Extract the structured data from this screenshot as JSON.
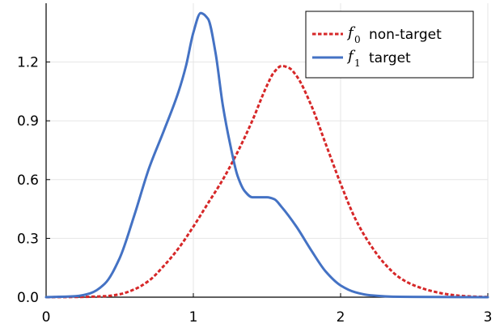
{
  "chart_data": {
    "type": "line",
    "title": "",
    "xlabel": "",
    "ylabel": "",
    "xlim": [
      0,
      3
    ],
    "ylim": [
      0,
      1.5
    ],
    "xticks": [
      0,
      1,
      2,
      3
    ],
    "xtick_labels": [
      "0",
      "1",
      "2",
      "3"
    ],
    "yticks": [
      0.0,
      0.3,
      0.6,
      0.9,
      1.2
    ],
    "ytick_labels": [
      "0.0",
      "0.3",
      "0.6",
      "0.9",
      "1.2"
    ],
    "grid": true,
    "legend_position": "top-right",
    "series": [
      {
        "name": "non-target",
        "symbol": "f",
        "subscript": "0",
        "color": "#d62728",
        "style": "dashed",
        "x": [
          0,
          0.2,
          0.4,
          0.5,
          0.6,
          0.7,
          0.8,
          0.9,
          1.0,
          1.1,
          1.2,
          1.3,
          1.4,
          1.5,
          1.55,
          1.6,
          1.65,
          1.7,
          1.8,
          1.9,
          2.0,
          2.1,
          2.2,
          2.3,
          2.4,
          2.5,
          2.6,
          2.7,
          2.8,
          2.9,
          3.0
        ],
        "y": [
          0,
          0.001,
          0.005,
          0.015,
          0.04,
          0.085,
          0.16,
          0.25,
          0.36,
          0.48,
          0.6,
          0.74,
          0.9,
          1.08,
          1.15,
          1.18,
          1.17,
          1.13,
          0.98,
          0.78,
          0.58,
          0.4,
          0.27,
          0.17,
          0.1,
          0.06,
          0.035,
          0.018,
          0.008,
          0.003,
          0.001
        ]
      },
      {
        "name": "target",
        "symbol": "f",
        "subscript": "1",
        "color": "#4472c4",
        "style": "solid",
        "x": [
          0,
          0.2,
          0.3,
          0.4,
          0.5,
          0.6,
          0.7,
          0.8,
          0.9,
          0.95,
          1.0,
          1.05,
          1.1,
          1.15,
          1.2,
          1.25,
          1.3,
          1.35,
          1.4,
          1.45,
          1.5,
          1.55,
          1.6,
          1.7,
          1.8,
          1.9,
          2.0,
          2.1,
          2.2,
          2.4,
          3.0
        ],
        "y": [
          0,
          0.005,
          0.02,
          0.07,
          0.2,
          0.42,
          0.66,
          0.85,
          1.05,
          1.18,
          1.35,
          1.45,
          1.42,
          1.25,
          0.98,
          0.78,
          0.62,
          0.54,
          0.51,
          0.51,
          0.51,
          0.5,
          0.46,
          0.36,
          0.24,
          0.13,
          0.06,
          0.025,
          0.01,
          0.002,
          0
        ]
      }
    ]
  }
}
